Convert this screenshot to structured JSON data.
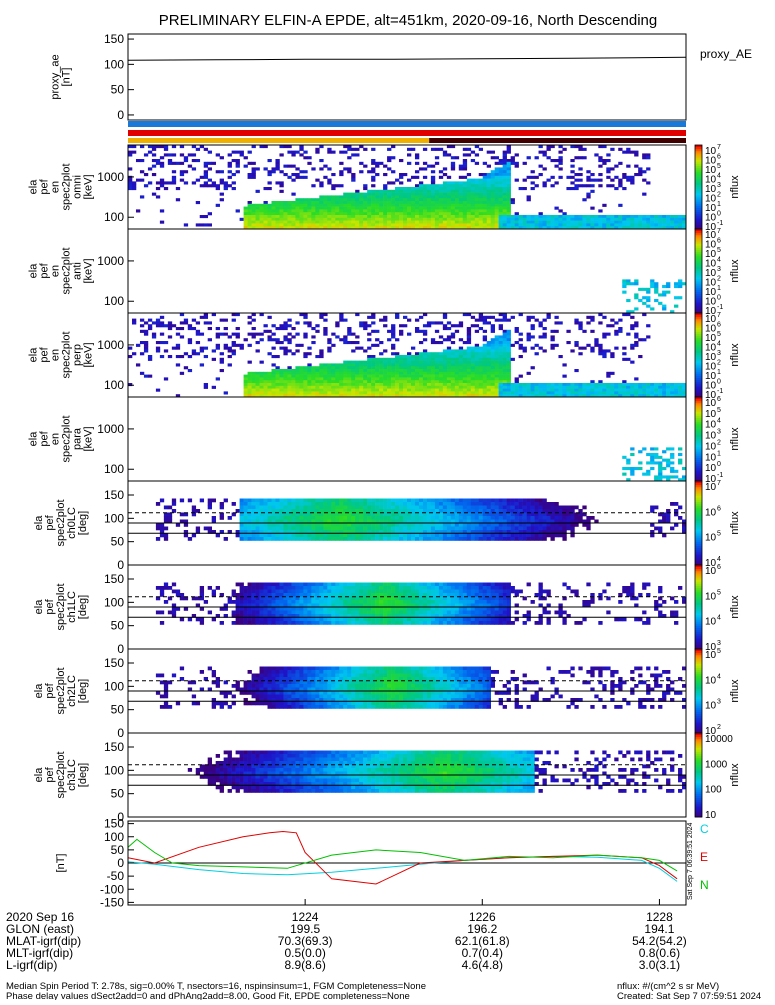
{
  "title": "PRELIMINARY ELFIN-A EPDE, alt=451km, 2020-09-16, North Descending",
  "footer": {
    "left_line1": "Median Spin Period T: 2.78s, sig=0.00% T, nsectors=16, nspinsinsum=1, FGM Completeness=None",
    "left_line2": "Phase delay values dSect2add=0 and dPhAng2add=8.00, Good Fit, EPDE completeness=None",
    "right_line1": "nflux: #/(cm^2 s sr MeV)",
    "right_line2": "Created: Sat Sep  7 07:59:51 2024",
    "side_stamp": "Sat Sep  7 06:39:51 2024"
  },
  "time_axis": {
    "ticks": [
      "1224",
      "1226",
      "1228"
    ],
    "rows": [
      {
        "label": "2020 Sep 16",
        "values": [
          "1224",
          "1226",
          "1228"
        ]
      },
      {
        "label": "GLON (east)",
        "values": [
          "199.5",
          "196.2",
          "194.1"
        ]
      },
      {
        "label": "MLAT-igrf(dip)",
        "values": [
          "70.3(69.3)",
          "62.1(61.8)",
          "54.2(54.2)"
        ]
      },
      {
        "label": "MLT-igrf(dip)",
        "values": [
          "0.5(0.0)",
          "0.7(0.4)",
          "0.8(0.6)"
        ]
      },
      {
        "label": "L-igrf(dip)",
        "values": [
          "8.9(8.6)",
          "4.6(4.8)",
          "3.0(3.1)"
        ]
      }
    ]
  },
  "colors": {
    "black": "#000000",
    "blue_bar": "#1a78d8",
    "red_bar": "#e00000",
    "yellow_bar": "#f0b000"
  },
  "chart_data": [
    {
      "type": "line",
      "ylabel_lines": [
        "proxy_ae",
        "[nT]"
      ],
      "yticks": [
        "150",
        "100",
        "50",
        "0"
      ],
      "ylim": [
        -10,
        160
      ],
      "legend": [
        "proxy_AE"
      ],
      "series": [
        {
          "name": "proxy_AE",
          "x": [
            1222.0,
            1223.0,
            1224.0,
            1225.0,
            1226.0,
            1227.0,
            1228.3
          ],
          "values": [
            108,
            109,
            110,
            110,
            111,
            112,
            114
          ]
        }
      ]
    },
    {
      "type": "heatmap",
      "ylabel_lines": [
        "ela",
        "pef",
        "en",
        "spec2plot",
        "omni",
        "[keV]"
      ],
      "yticks": [
        "1000",
        "100"
      ],
      "colorbar": {
        "label": "nflux",
        "ticks": [
          "10",
          "10",
          "10",
          "10",
          "10",
          "10",
          "10",
          "10",
          "10"
        ],
        "exponents": [
          "7",
          "6",
          "5",
          "4",
          "3",
          "2",
          "1",
          "0",
          "-1"
        ]
      }
    },
    {
      "type": "heatmap",
      "ylabel_lines": [
        "ela",
        "pef",
        "en",
        "spec2plot",
        "anti",
        "[keV]"
      ],
      "yticks": [
        "1000",
        "100"
      ],
      "colorbar": {
        "label": "nflux",
        "ticks": [
          "10",
          "10",
          "10",
          "10",
          "10",
          "10",
          "10",
          "10",
          "10"
        ],
        "exponents": [
          "7",
          "6",
          "5",
          "4",
          "3",
          "2",
          "1",
          "0",
          "-1"
        ]
      }
    },
    {
      "type": "heatmap",
      "ylabel_lines": [
        "ela",
        "pef",
        "en",
        "spec2plot",
        "perp",
        "[keV]"
      ],
      "yticks": [
        "1000",
        "100"
      ],
      "colorbar": {
        "label": "nflux",
        "ticks": [
          "10",
          "10",
          "10",
          "10",
          "10",
          "10",
          "10",
          "10",
          "10"
        ],
        "exponents": [
          "7",
          "6",
          "5",
          "4",
          "3",
          "2",
          "1",
          "0",
          "-1"
        ]
      }
    },
    {
      "type": "heatmap",
      "ylabel_lines": [
        "ela",
        "pef",
        "en",
        "spec2plot",
        "para",
        "[keV]"
      ],
      "yticks": [
        "1000",
        "100"
      ],
      "colorbar": {
        "label": "nflux",
        "ticks": [
          "10",
          "10",
          "10",
          "10",
          "10",
          "10",
          "10",
          "10"
        ],
        "exponents": [
          "6",
          "5",
          "4",
          "3",
          "2",
          "1",
          "0",
          "-1"
        ]
      }
    },
    {
      "type": "heatmap",
      "ylabel_lines": [
        "ela",
        "pef",
        "spec2plot",
        "ch0LC",
        "[deg]"
      ],
      "yticks": [
        "150",
        "100",
        "50",
        "0"
      ],
      "colorbar": {
        "label": "nflux",
        "ticks": [
          "10",
          "10",
          "10",
          "10"
        ],
        "exponents": [
          "7",
          "6",
          "5",
          "4"
        ]
      }
    },
    {
      "type": "heatmap",
      "ylabel_lines": [
        "ela",
        "pef",
        "spec2plot",
        "ch1LC",
        "[deg]"
      ],
      "yticks": [
        "150",
        "100",
        "50",
        "0"
      ],
      "colorbar": {
        "label": "nflux",
        "ticks": [
          "10",
          "10",
          "10",
          "10"
        ],
        "exponents": [
          "6",
          "5",
          "4",
          "3"
        ]
      }
    },
    {
      "type": "heatmap",
      "ylabel_lines": [
        "ela",
        "pef",
        "spec2plot",
        "ch2LC",
        "[deg]"
      ],
      "yticks": [
        "150",
        "100",
        "50",
        "0"
      ],
      "colorbar": {
        "label": "nflux",
        "ticks": [
          "10",
          "10",
          "10",
          "10"
        ],
        "exponents": [
          "5",
          "4",
          "3",
          "2"
        ]
      }
    },
    {
      "type": "heatmap",
      "ylabel_lines": [
        "ela",
        "pef",
        "spec2plot",
        "ch3LC",
        "[deg]"
      ],
      "yticks": [
        "150",
        "100",
        "50",
        "0"
      ],
      "colorbar": {
        "label": "nflux",
        "ticks": [
          "10000",
          "1000",
          "100",
          "10"
        ],
        "exponents": [
          "",
          "",
          "",
          ""
        ]
      }
    },
    {
      "type": "line",
      "ylabel_lines": [
        "[nT]"
      ],
      "yticks": [
        "150",
        "100",
        "50",
        "0",
        "-50",
        "-100",
        "-150"
      ],
      "ylim": [
        -160,
        160
      ],
      "legend": [
        "C",
        "E",
        "N"
      ],
      "series": [
        {
          "name": "C",
          "color": "#00d0e0",
          "x": [
            1222.0,
            1222.3,
            1222.8,
            1223.3,
            1223.8,
            1224.3,
            1224.8,
            1225.3,
            1225.8,
            1226.3,
            1226.8,
            1227.3,
            1227.8,
            1228.0,
            1228.2
          ],
          "values": [
            5,
            -5,
            -25,
            -40,
            -45,
            -35,
            -20,
            -5,
            10,
            20,
            25,
            22,
            10,
            -20,
            -70
          ]
        },
        {
          "name": "E",
          "color": "#e00000",
          "x": [
            1222.0,
            1222.3,
            1222.8,
            1223.3,
            1223.6,
            1223.75,
            1223.9,
            1224.0,
            1224.3,
            1224.8,
            1225.3,
            1225.8,
            1226.3,
            1226.8,
            1227.3,
            1227.8,
            1228.0,
            1228.2
          ],
          "values": [
            20,
            0,
            60,
            100,
            115,
            120,
            115,
            40,
            -60,
            -80,
            0,
            10,
            20,
            25,
            30,
            20,
            -10,
            -60
          ]
        },
        {
          "name": "N",
          "color": "#00c000",
          "x": [
            1222.0,
            1222.1,
            1222.3,
            1222.5,
            1222.8,
            1223.3,
            1223.8,
            1224.3,
            1224.8,
            1225.3,
            1225.8,
            1226.3,
            1226.8,
            1227.3,
            1227.8,
            1228.0,
            1228.2
          ],
          "values": [
            60,
            90,
            40,
            0,
            -10,
            -15,
            -20,
            30,
            50,
            40,
            10,
            25,
            20,
            30,
            20,
            10,
            -30
          ]
        }
      ]
    }
  ]
}
